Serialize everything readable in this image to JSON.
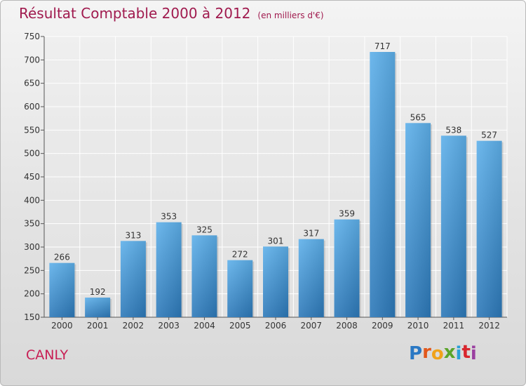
{
  "header": {
    "title": "Résultat Comptable 2000 à 2012",
    "subtitle": "(en milliers d'€)"
  },
  "commune": "CANLY",
  "logo": {
    "letters": [
      "P",
      "r",
      "o",
      "x",
      "i",
      "t",
      "i"
    ]
  },
  "colors": {
    "title": "#a01a4e",
    "commune": "#c81e54",
    "bar_top": "#5eb0ea",
    "bar_bottom": "#2d79b9",
    "logo": [
      "#2a78c4",
      "#e2581c",
      "#f0a21a",
      "#5aa52a",
      "#2aa0d8",
      "#d8262e",
      "#9a3fa0"
    ]
  },
  "chart_data": {
    "type": "bar",
    "title": "Résultat Comptable 2000 à 2012",
    "xlabel": "",
    "ylabel": "",
    "categories": [
      "2000",
      "2001",
      "2002",
      "2003",
      "2004",
      "2005",
      "2006",
      "2007",
      "2008",
      "2009",
      "2010",
      "2011",
      "2012"
    ],
    "values": [
      266,
      192,
      313,
      353,
      325,
      272,
      301,
      317,
      359,
      717,
      565,
      538,
      527
    ],
    "ylim": [
      150,
      750
    ],
    "yticks": [
      150,
      200,
      250,
      300,
      350,
      400,
      450,
      500,
      550,
      600,
      650,
      700,
      750
    ],
    "grid": true
  }
}
